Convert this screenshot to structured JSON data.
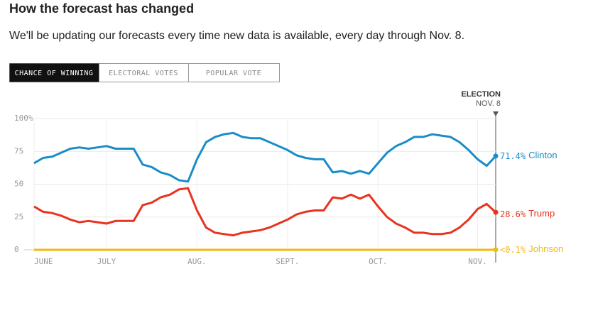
{
  "chart_data": {
    "type": "line",
    "title": "How the forecast has changed",
    "subtitle": "We'll be updating our forecasts every time new data is available, every day through Nov. 8.",
    "tabs": [
      "CHANCE OF WINNING",
      "ELECTORAL VOTES",
      "POPULAR VOTE"
    ],
    "annotation": {
      "label": "ELECTION",
      "sublabel": "NOV. 8"
    },
    "categories": [
      "JUNE",
      null,
      null,
      null,
      null,
      null,
      null,
      null,
      "JULY",
      null,
      null,
      null,
      null,
      null,
      null,
      null,
      null,
      null,
      "AUG.",
      null,
      null,
      null,
      null,
      null,
      null,
      null,
      null,
      null,
      "SEPT.",
      null,
      null,
      null,
      null,
      null,
      null,
      null,
      null,
      null,
      "OCT.",
      null,
      null,
      null,
      null,
      null,
      null,
      null,
      null,
      null,
      null,
      "NOV.",
      null,
      null
    ],
    "series": [
      {
        "name": "Clinton",
        "color": "#1a8dc6",
        "values": [
          66,
          70,
          71,
          74,
          77,
          78,
          77,
          78,
          79,
          77,
          77,
          77,
          65,
          63,
          59,
          57,
          53,
          52,
          69,
          82,
          86,
          88,
          89,
          86,
          85,
          85,
          82,
          79,
          76,
          72,
          70,
          69,
          69,
          59,
          60,
          58,
          60,
          58,
          66,
          74,
          79,
          82,
          86,
          86,
          88,
          87,
          86,
          82,
          76,
          69,
          64,
          71.4
        ],
        "value_labels": [
          null,
          null,
          null,
          null,
          null,
          null,
          null,
          null,
          null,
          null,
          null,
          null,
          null,
          null,
          null,
          null,
          null,
          null,
          null,
          null,
          null,
          null,
          null,
          null,
          null,
          null,
          null,
          null,
          null,
          null,
          null,
          null,
          null,
          null,
          null,
          null,
          null,
          null,
          null,
          null,
          null,
          null,
          null,
          null,
          null,
          null,
          null,
          null,
          null,
          null,
          null,
          "71.4%"
        ]
      },
      {
        "name": "Trump",
        "color": "#e8331f",
        "values": [
          33,
          29,
          28,
          26,
          23,
          21,
          22,
          21,
          20,
          22,
          22,
          22,
          34,
          36,
          40,
          42,
          46,
          47,
          30,
          17,
          13,
          12,
          11,
          13,
          14,
          15,
          17,
          20,
          23,
          27,
          29,
          30,
          30,
          40,
          39,
          42,
          39,
          42,
          33,
          25,
          20,
          17,
          13,
          13,
          12,
          12,
          13,
          17,
          23,
          31,
          35,
          28.6
        ],
        "value_labels": [
          null,
          null,
          null,
          null,
          null,
          null,
          null,
          null,
          null,
          null,
          null,
          null,
          null,
          null,
          null,
          null,
          null,
          null,
          null,
          null,
          null,
          null,
          null,
          null,
          null,
          null,
          null,
          null,
          null,
          null,
          null,
          null,
          null,
          null,
          null,
          null,
          null,
          null,
          null,
          null,
          null,
          null,
          null,
          null,
          null,
          null,
          null,
          null,
          null,
          null,
          null,
          "28.6%"
        ]
      },
      {
        "name": "Johnson",
        "color": "#f2b90f",
        "values": [
          0,
          0,
          0,
          0,
          0,
          0,
          0,
          0,
          0,
          0,
          0,
          0,
          0,
          0,
          0,
          0,
          0,
          0,
          0,
          0,
          0,
          0,
          0,
          0,
          0,
          0,
          0,
          0,
          0,
          0,
          0,
          0,
          0,
          0,
          0,
          0,
          0,
          0,
          0,
          0,
          0,
          0,
          0,
          0,
          0,
          0,
          0,
          0,
          0,
          0,
          0,
          0.1
        ],
        "value_labels": [
          null,
          null,
          null,
          null,
          null,
          null,
          null,
          null,
          null,
          null,
          null,
          null,
          null,
          null,
          null,
          null,
          null,
          null,
          null,
          null,
          null,
          null,
          null,
          null,
          null,
          null,
          null,
          null,
          null,
          null,
          null,
          null,
          null,
          null,
          null,
          null,
          null,
          null,
          null,
          null,
          null,
          null,
          null,
          null,
          null,
          null,
          null,
          null,
          null,
          null,
          null,
          "<0.1%"
        ]
      }
    ],
    "ylim": [
      0,
      100
    ],
    "yticks": [
      0,
      25,
      50,
      75,
      {
        "value": 100,
        "label": "100%"
      }
    ],
    "grid": true
  }
}
